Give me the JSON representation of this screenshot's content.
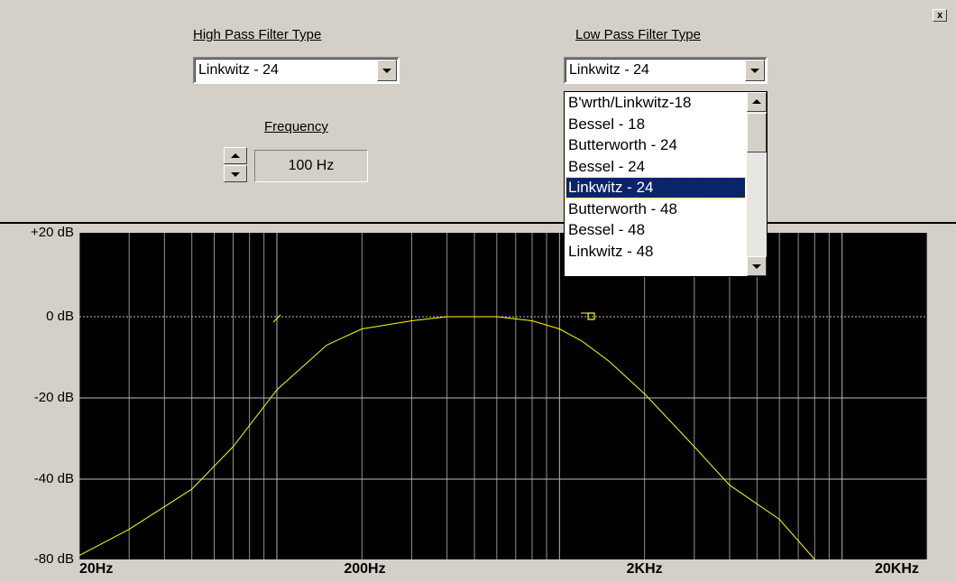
{
  "window": {
    "close_label": "x"
  },
  "high_pass": {
    "label": "High Pass Filter Type",
    "selected": "Linkwitz - 24"
  },
  "frequency": {
    "label": "Frequency",
    "value": "100 Hz"
  },
  "low_pass": {
    "label": "Low Pass Filter Type",
    "selected": "Linkwitz - 24",
    "options": [
      "B'wrth/Linkwitz-18",
      "Bessel - 18",
      "Butterworth - 24",
      "Bessel - 24",
      "Linkwitz - 24",
      "Butterworth - 48",
      "Bessel - 48",
      "Linkwitz - 48"
    ],
    "highlighted_index": 4
  },
  "colors": {
    "plot_background": "#000000",
    "grid": "#c0c0c0",
    "curve": "#ffff00",
    "selection": "#0a246a"
  },
  "chart_data": {
    "type": "line",
    "x_scale": "log",
    "xlim": [
      20,
      20000
    ],
    "ylim": [
      -80,
      20
    ],
    "x_tick_labels": [
      "20Hz",
      "200Hz",
      "2KHz",
      "20KHz"
    ],
    "y_tick_labels": [
      "+20 dB",
      "0 dB",
      "-20 dB",
      "-40 dB",
      "-80 dB"
    ],
    "series": [
      {
        "x": [
          20,
          30,
          50,
          70,
          100,
          150,
          200,
          300,
          400,
          600,
          800,
          1000,
          1200,
          1500,
          2000,
          3000,
          4000,
          6000,
          8000
        ],
        "y": [
          -78,
          -65,
          -45,
          -32,
          -18,
          -7,
          -3,
          -1,
          0,
          0,
          -1,
          -3,
          -6,
          -11,
          -19,
          -32,
          -43,
          -60,
          -80
        ]
      }
    ],
    "markers": [
      {
        "x": 1300,
        "y": 0
      }
    ]
  }
}
